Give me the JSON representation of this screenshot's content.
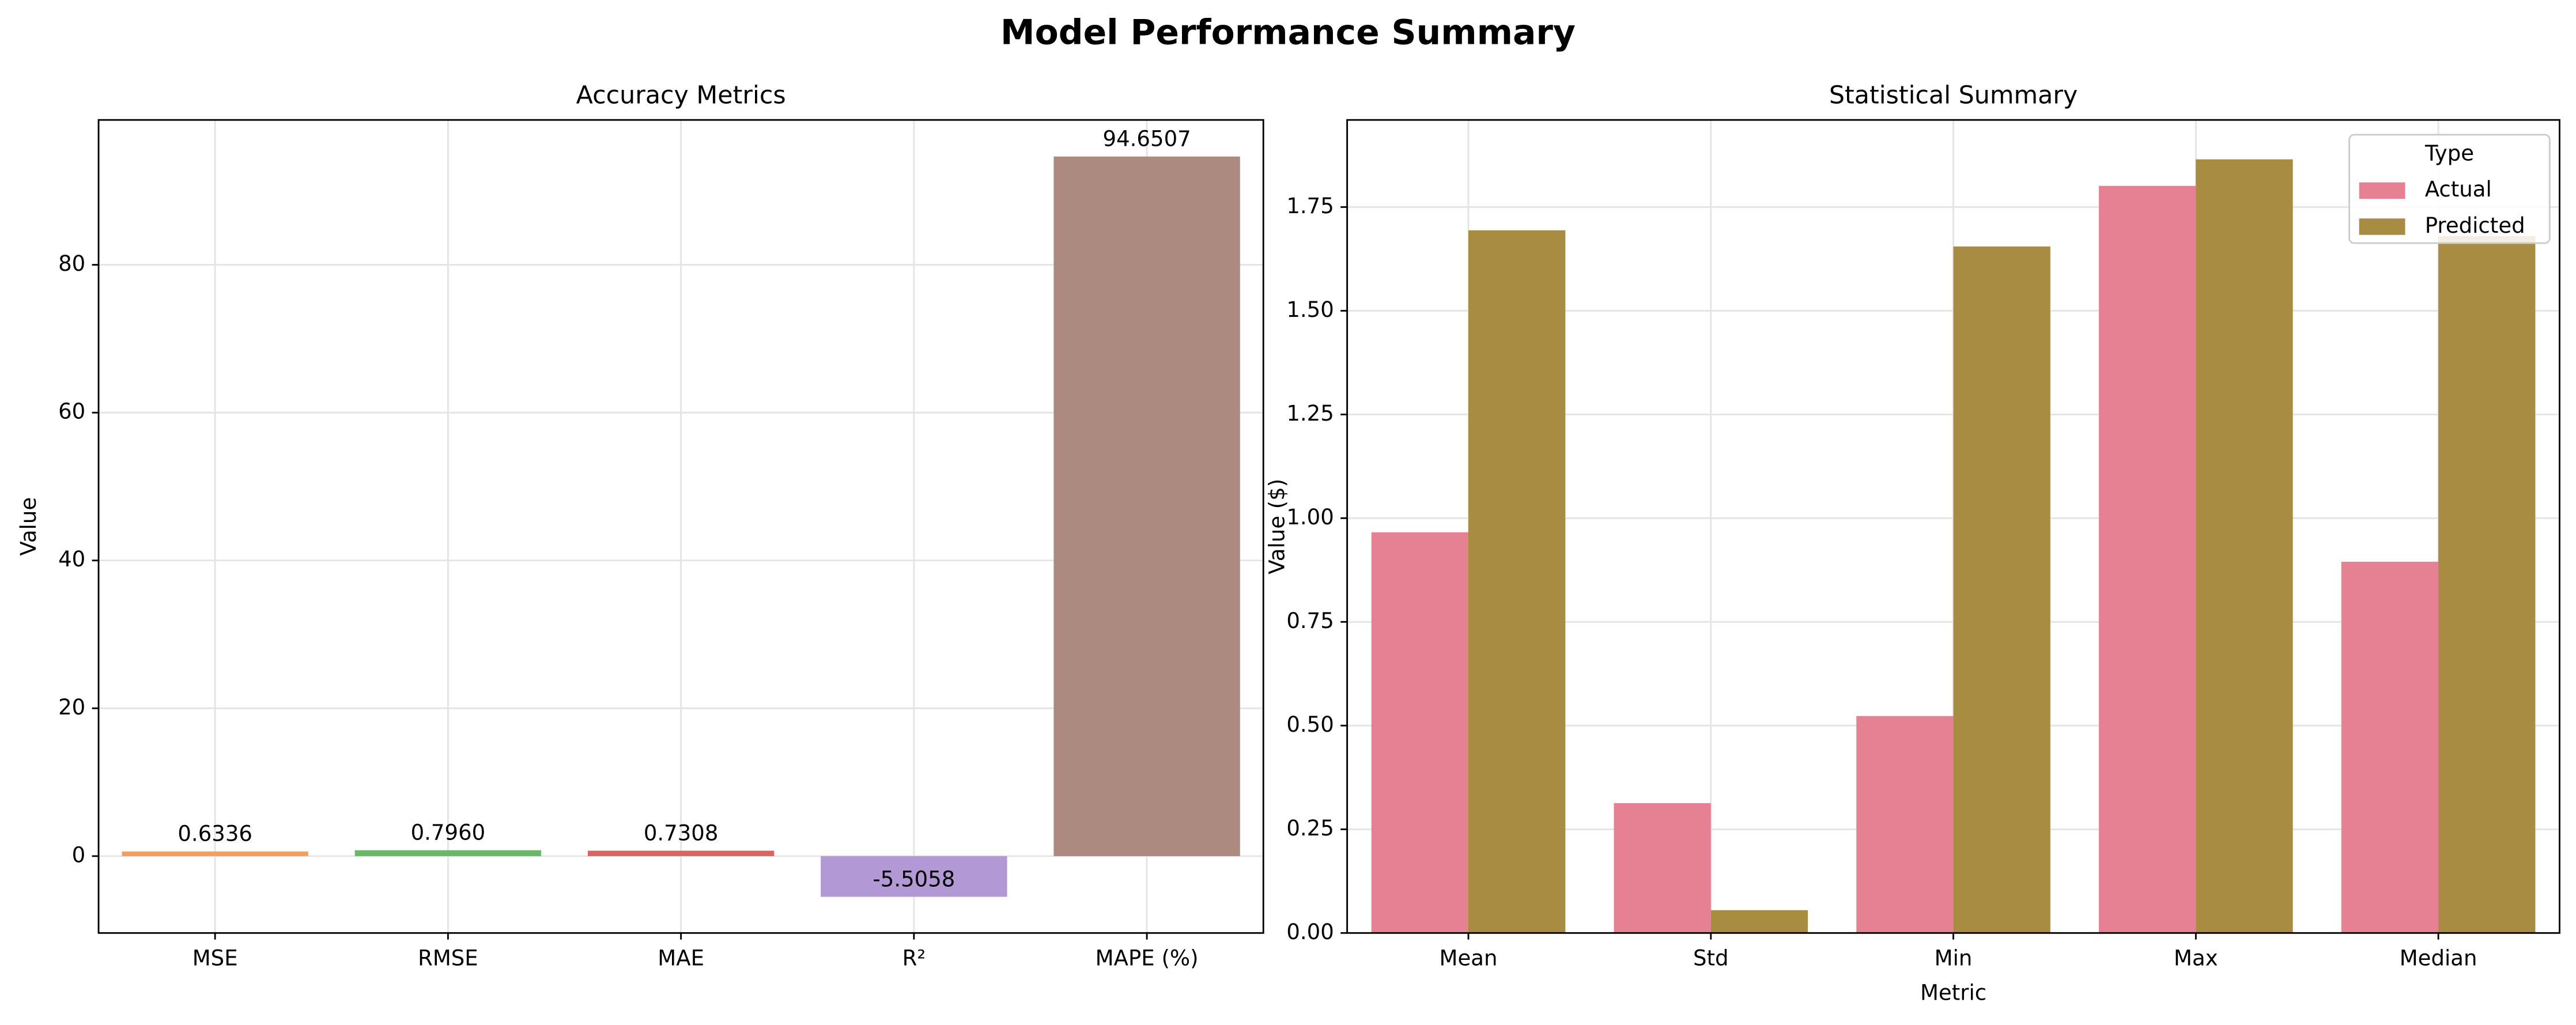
{
  "title": "Model Performance Summary",
  "chart_data": [
    {
      "type": "bar",
      "title": "Accuracy Metrics",
      "ylabel": "Value",
      "categories": [
        "MSE",
        "RMSE",
        "MAE",
        "R²",
        "MAPE (%)"
      ],
      "values": [
        0.6336,
        0.796,
        0.7308,
        -5.5058,
        94.6507
      ],
      "value_labels": [
        "0.6336",
        "0.7960",
        "0.7308",
        "-5.5058",
        "94.6507"
      ],
      "colors": [
        "#f0a062",
        "#6ab76a",
        "#d96464",
        "#b298d4",
        "#ad8a80"
      ],
      "ylim": [
        -10.4,
        99.6
      ],
      "yticks": [
        0,
        20,
        40,
        60,
        80
      ],
      "grid": true
    },
    {
      "type": "grouped_bar",
      "title": "Statistical Summary",
      "xlabel": "Metric",
      "ylabel": "Value ($)",
      "categories": [
        "Mean",
        "Std",
        "Min",
        "Max",
        "Median"
      ],
      "series": [
        {
          "name": "Actual",
          "color": "#e68193",
          "values": [
            0.966,
            0.313,
            0.523,
            1.801,
            0.895
          ]
        },
        {
          "name": "Predicted",
          "color": "#a88c41",
          "values": [
            1.694,
            0.055,
            1.655,
            1.865,
            1.68
          ]
        }
      ],
      "legend_title": "Type",
      "legend": "upper right",
      "ylim": [
        0,
        1.96
      ],
      "yticks": [
        {
          "value": 0,
          "label": "0.00"
        },
        0.25,
        {
          "value": 0.5,
          "label": "0.50"
        },
        0.75,
        {
          "value": 1,
          "label": "1.00"
        },
        1.25,
        {
          "value": 1.5,
          "label": "1.50"
        },
        1.75
      ],
      "grid": true
    }
  ]
}
